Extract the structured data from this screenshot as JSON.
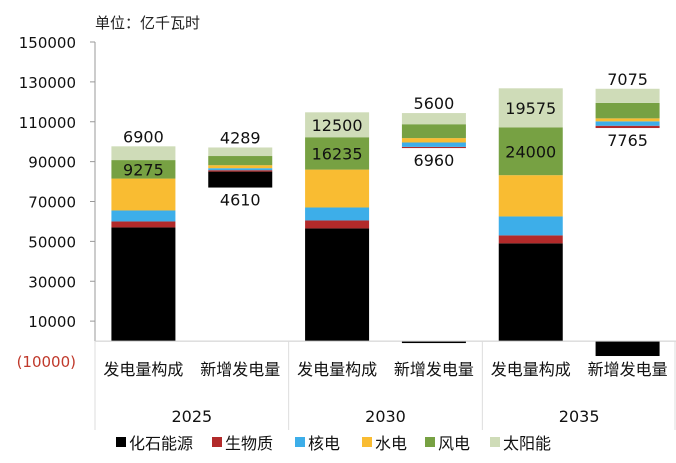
{
  "chart_data": {
    "type": "bar",
    "stacked": true,
    "unit_label": "单位：亿千瓦时",
    "ylim": [
      -10000,
      150000
    ],
    "yticks": [
      -10000,
      10000,
      30000,
      50000,
      70000,
      90000,
      110000,
      130000,
      150000
    ],
    "ytick_labels": [
      "(10000)",
      "10000",
      "30000",
      "50000",
      "70000",
      "90000",
      "110000",
      "130000",
      "150000"
    ],
    "negative_label_color": "#c0392b",
    "grid": false,
    "legend_placement": "bottom",
    "groups": [
      "2025",
      "2030",
      "2035"
    ],
    "categories": [
      "发电量构成",
      "新增发电量",
      "发电量构成",
      "新增发电量",
      "发电量构成",
      "新增发电量"
    ],
    "invisible_base": [
      0,
      77000,
      0,
      96800,
      0,
      106850
    ],
    "series": [
      {
        "name": "化石能源",
        "color": "#000000",
        "values": [
          57000,
          8000,
          56500,
          -1000,
          49000,
          -7500
        ]
      },
      {
        "name": "生物质",
        "color": "#b22a2a",
        "values": [
          3000,
          700,
          4000,
          600,
          4000,
          1150
        ]
      },
      {
        "name": "核电",
        "color": "#3daee9",
        "values": [
          5500,
          1000,
          6500,
          2200,
          9500,
          2200
        ]
      },
      {
        "name": "水电",
        "color": "#f9bc32",
        "values": [
          16000,
          1500,
          19000,
          2200,
          20700,
          1500
        ]
      },
      {
        "name": "风电",
        "color": "#77a143",
        "values": [
          9275,
          4610,
          16235,
          6960,
          24000,
          7765
        ],
        "labels": [
          "9275",
          "4610",
          "16235",
          "6960",
          "24000",
          "7765"
        ]
      },
      {
        "name": "太阳能",
        "color": "#cfdcb8",
        "values": [
          6900,
          4289,
          12500,
          5600,
          19575,
          7075
        ],
        "labels": [
          "6900",
          "4289",
          "12500",
          "5600",
          "19575",
          "7075"
        ]
      }
    ]
  }
}
